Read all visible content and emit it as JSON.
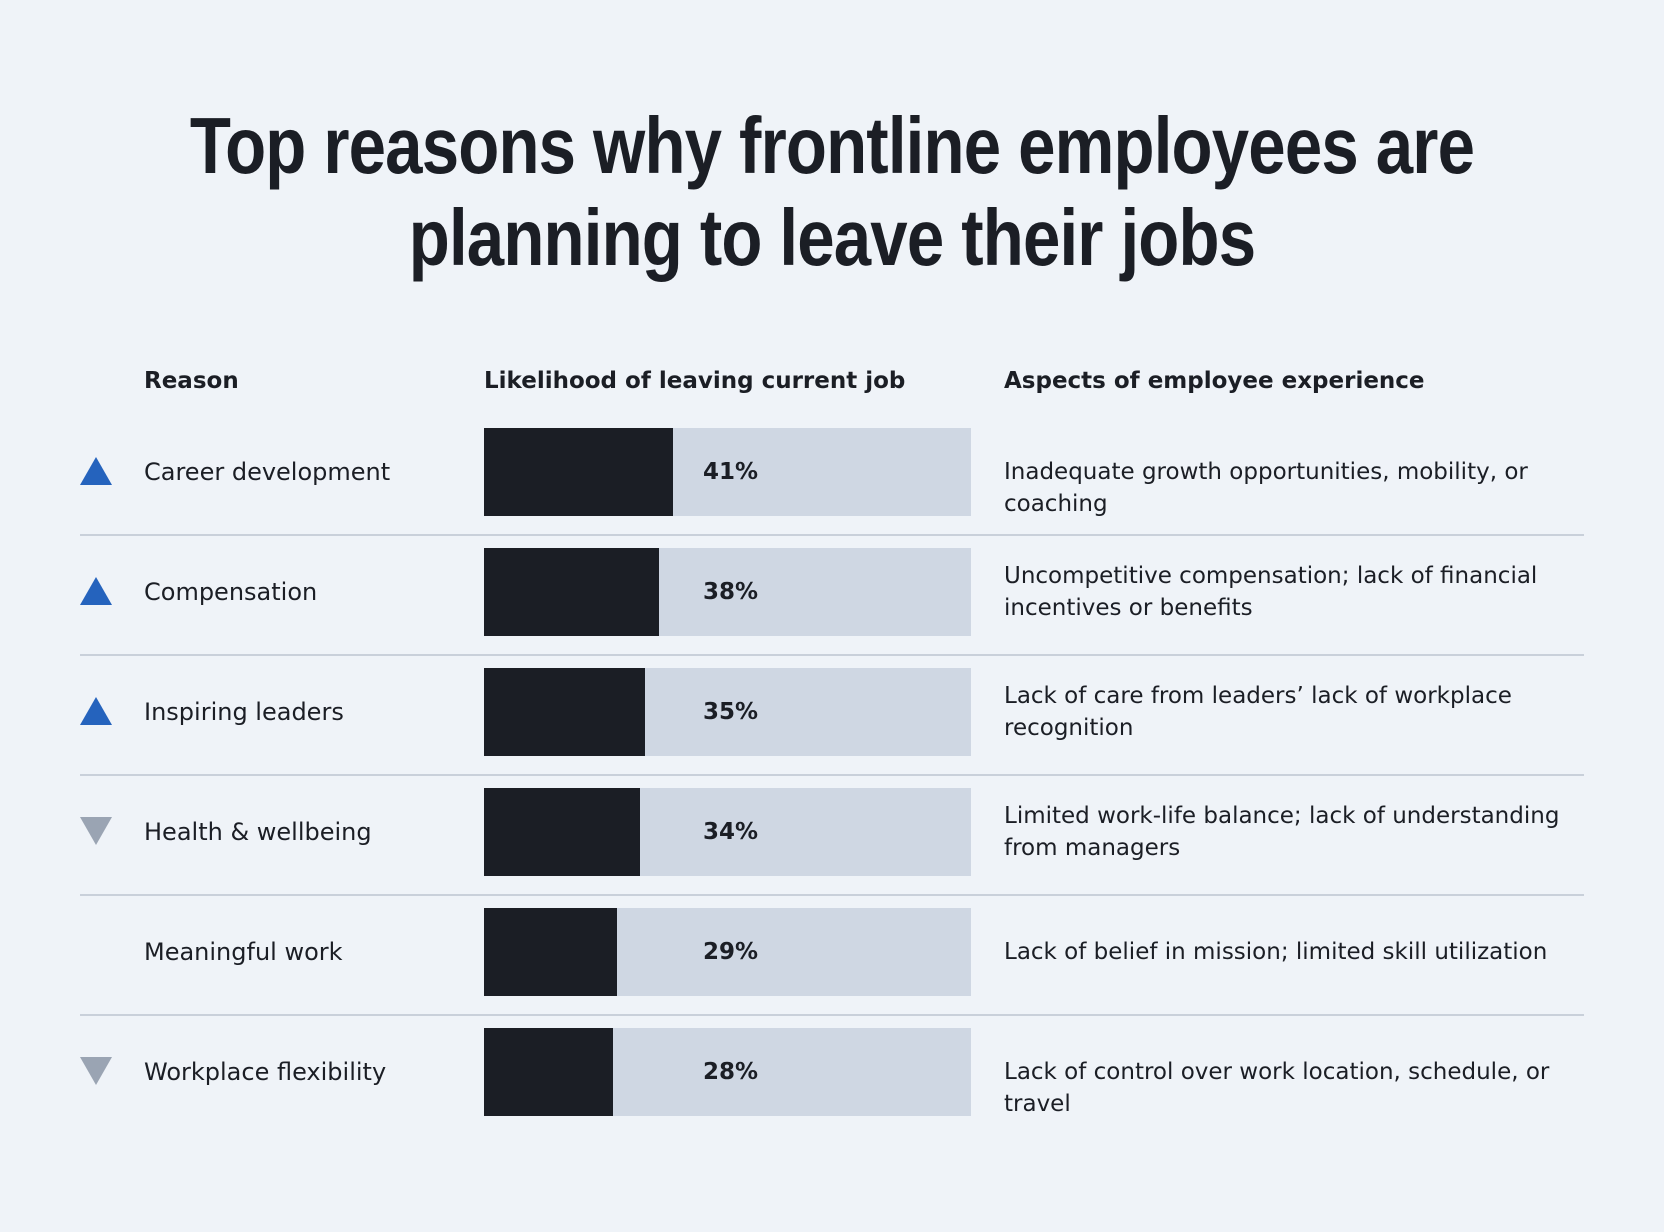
{
  "title_line1": "Top reasons why frontline employees are",
  "title_line2": "planning to leave their jobs",
  "headers": {
    "reason": "Reason",
    "likelihood": "Likelihood of leaving current job",
    "aspects": "Aspects of employee experience"
  },
  "colors": {
    "up": "#2563bd",
    "down": "#9aa4b3",
    "bar_fill": "#1b1e25",
    "bar_track": "#cfd7e3"
  },
  "rows": [
    {
      "reason": "Career development",
      "trend": "up",
      "value_label": "41%",
      "aspect": "Inadequate growth opportunities, mobility, or coaching"
    },
    {
      "reason": "Compensation",
      "trend": "up",
      "value_label": "38%",
      "aspect": "Uncompetitive compensation; lack of financial incentives or benefits"
    },
    {
      "reason": "Inspiring leaders",
      "trend": "up",
      "value_label": "35%",
      "aspect": "Lack of care from leaders’ lack of workplace recognition"
    },
    {
      "reason": "Health & wellbeing",
      "trend": "down",
      "value_label": "34%",
      "aspect": "Limited work-life balance; lack of understanding from managers"
    },
    {
      "reason": "Meaningful work",
      "trend": "none",
      "value_label": "29%",
      "aspect": "Lack of belief in mission; limited skill utilization"
    },
    {
      "reason": "Workplace flexibility",
      "trend": "down",
      "value_label": "28%",
      "aspect": "Lack of control over work location, schedule, or travel"
    }
  ],
  "chart_data": {
    "type": "bar",
    "orientation": "horizontal",
    "title": "Top reasons why frontline employees are planning to leave their jobs",
    "categories": [
      "Career development",
      "Compensation",
      "Inspiring leaders",
      "Health & wellbeing",
      "Meaningful work",
      "Workplace flexibility"
    ],
    "values": [
      41,
      38,
      35,
      34,
      29,
      28
    ],
    "unit": "%",
    "xlabel": "Likelihood of leaving current job",
    "ylabel": "Reason",
    "xlim": [
      0,
      100
    ],
    "trend": [
      "up",
      "up",
      "up",
      "down",
      "none",
      "down"
    ]
  }
}
